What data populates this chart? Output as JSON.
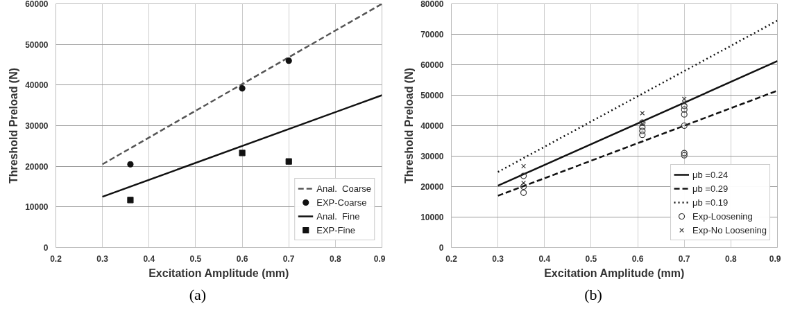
{
  "chart_data": [
    {
      "type": "line",
      "xlabel": "Excitation Amplitude (mm)",
      "ylabel": "Threshold Preload (N)",
      "xlim": [
        0.2,
        0.9
      ],
      "ylim": [
        0,
        60000
      ],
      "xticks": [
        0.2,
        0.3,
        0.4,
        0.5,
        0.6,
        0.7,
        0.8,
        0.9
      ],
      "yticks": [
        0,
        10000,
        20000,
        30000,
        40000,
        50000,
        60000
      ],
      "grid": true,
      "legend": "bottom right",
      "annotations": [
        "(a)"
      ],
      "series": [
        {
          "name": "Anal.  Coarse",
          "line_style": "dashed",
          "marker": "none",
          "color": "#555555",
          "x": [
            0.3,
            0.9
          ],
          "values": [
            20500,
            60000
          ]
        },
        {
          "name": "EXP-Coarse",
          "type": "scatter",
          "marker": "circle",
          "color": "#111111",
          "x": [
            0.36,
            0.6,
            0.7
          ],
          "values": [
            20500,
            39200,
            46000
          ]
        },
        {
          "name": "Anal.  Fine",
          "line_style": "solid",
          "marker": "none",
          "color": "#111111",
          "x": [
            0.3,
            0.9
          ],
          "values": [
            12500,
            37500
          ]
        },
        {
          "name": "EXP-Fine",
          "type": "scatter",
          "marker": "square",
          "color": "#111111",
          "x": [
            0.36,
            0.6,
            0.7
          ],
          "values": [
            11700,
            23300,
            21200
          ]
        }
      ]
    },
    {
      "type": "line",
      "xlabel": "Excitation Amplitude (mm)",
      "ylabel": "Threshold Preload (N)",
      "xlim": [
        0.2,
        0.9
      ],
      "ylim": [
        0,
        80000
      ],
      "xticks": [
        0.2,
        0.3,
        0.4,
        0.5,
        0.6,
        0.7,
        0.8,
        0.9
      ],
      "yticks": [
        0,
        10000,
        20000,
        30000,
        40000,
        50000,
        60000,
        70000,
        80000
      ],
      "grid": true,
      "legend": "bottom right",
      "annotations": [
        "(b)"
      ],
      "series": [
        {
          "name": "μb =0.24",
          "line_style": "solid",
          "marker": "none",
          "color": "#111111",
          "x": [
            0.3,
            0.9
          ],
          "values": [
            20300,
            61200
          ]
        },
        {
          "name": "μb =0.29",
          "line_style": "dashed",
          "marker": "none",
          "color": "#111111",
          "x": [
            0.3,
            0.9
          ],
          "values": [
            17000,
            51500
          ]
        },
        {
          "name": "μb =0.19",
          "line_style": "dotted",
          "marker": "none",
          "color": "#111111",
          "x": [
            0.3,
            0.9
          ],
          "values": [
            24800,
            74500
          ]
        },
        {
          "name": "Exp-Loosening",
          "type": "scatter",
          "marker": "circle_hollow",
          "color": "#333333",
          "x": [
            0.355,
            0.355,
            0.355,
            0.61,
            0.61,
            0.61,
            0.61,
            0.7,
            0.7,
            0.7,
            0.7,
            0.7,
            0.7
          ],
          "values": [
            23500,
            20000,
            18000,
            41000,
            39500,
            38300,
            37000,
            46500,
            45300,
            43700,
            40000,
            31000,
            30300
          ]
        },
        {
          "name": "Exp-No Loosening",
          "type": "scatter",
          "marker": "cross",
          "color": "#333333",
          "x": [
            0.355,
            0.355,
            0.61,
            0.61,
            0.7,
            0.7
          ],
          "values": [
            26700,
            21200,
            44100,
            40500,
            48800,
            47500
          ]
        }
      ]
    }
  ]
}
